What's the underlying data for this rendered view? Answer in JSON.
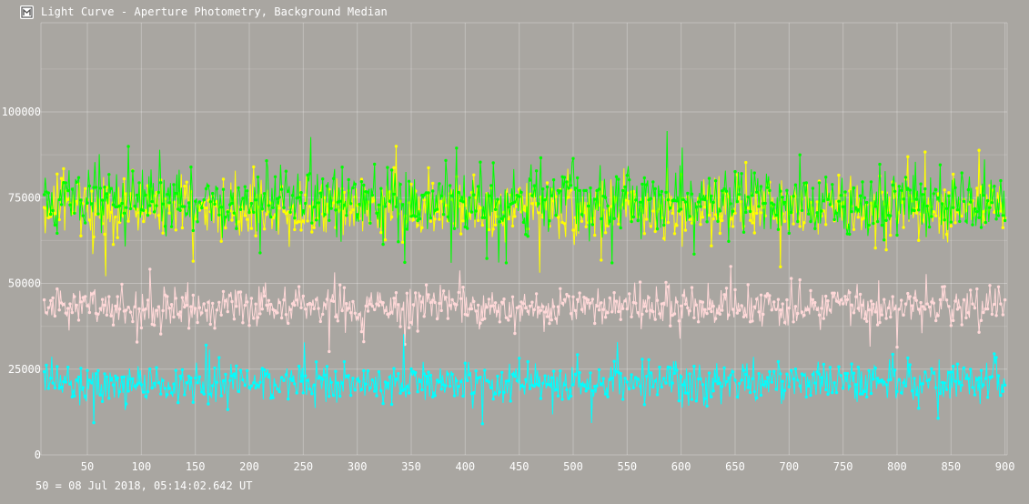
{
  "window": {
    "title": "Light Curve - Aperture Photometry, Background Median",
    "icon": "telescope-icon"
  },
  "footer": {
    "note": "50 = 08 Jul 2018, 05:14:02.642 UT"
  },
  "chart_data": {
    "type": "line",
    "title": "Light Curve - Aperture Photometry, Background Median",
    "xlabel": "",
    "ylabel": "",
    "xlim": [
      7,
      902
    ],
    "ylim": [
      0,
      126000
    ],
    "xticks": [
      50,
      100,
      150,
      200,
      250,
      300,
      350,
      400,
      450,
      500,
      550,
      600,
      650,
      700,
      750,
      800,
      850,
      900
    ],
    "yticks": [
      0,
      25000,
      50000,
      75000,
      100000
    ],
    "ytick_labels": [
      "0",
      "25000",
      "50000",
      "75000",
      "100000"
    ],
    "grid": true,
    "legend": "none",
    "x_range": [
      10,
      900
    ],
    "series": [
      {
        "color": "#ffff00",
        "mean": 72000,
        "amplitude": 8000,
        "min": 52000,
        "max": 94000
      },
      {
        "color": "#00ff00",
        "mean": 74000,
        "amplitude": 9000,
        "min": 56000,
        "max": 101000
      },
      {
        "color": "#ffd8d8",
        "mean": 43000,
        "amplitude": 5500,
        "min": 30000,
        "max": 58000
      },
      {
        "color": "#00ffff",
        "mean": 21000,
        "amplitude": 5500,
        "min": 4000,
        "max": 37000
      }
    ]
  }
}
